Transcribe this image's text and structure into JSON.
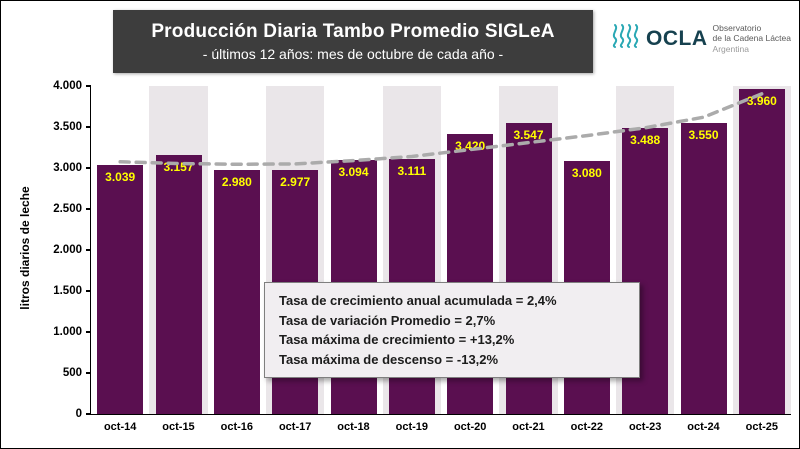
{
  "header": {
    "title": "Producción Diaria Tambo Promedio SIGLeA",
    "subtitle": "- últimos 12 años: mes de octubre de cada año -"
  },
  "logo": {
    "name": "OCLA",
    "line1": "Observatorio",
    "line2": "de la Cadena Láctea",
    "line3": "Argentina"
  },
  "chart_data": {
    "type": "bar",
    "title": "Producción Diaria Tambo Promedio SIGLeA",
    "subtitle": "- últimos 12 años: mes de octubre de cada año -",
    "ylabel": "litros diarios de leche",
    "xlabel": "",
    "categories": [
      "oct-14",
      "oct-15",
      "oct-16",
      "oct-17",
      "oct-18",
      "oct-19",
      "oct-20",
      "oct-21",
      "oct-22",
      "oct-23",
      "oct-24",
      "oct-25"
    ],
    "values": [
      3039,
      3157,
      2980,
      2977,
      3094,
      3111,
      3420,
      3547,
      3080,
      3488,
      3550,
      3960
    ],
    "value_labels": [
      "3.039",
      "3.157",
      "2.980",
      "2.977",
      "3.094",
      "3.111",
      "3.420",
      "3.547",
      "3.080",
      "3.488",
      "3.550",
      "3.960"
    ],
    "ylim": [
      0,
      4000
    ],
    "yticks_values": [
      0,
      500,
      1000,
      1500,
      2000,
      2500,
      3000,
      3500,
      4000
    ],
    "yticks_labels": [
      "0",
      "500",
      "1.000",
      "1.500",
      "2.000",
      "2.500",
      "3.000",
      "3.500",
      "4.000"
    ],
    "trend_values": [
      3075,
      3055,
      3045,
      3050,
      3090,
      3140,
      3225,
      3310,
      3395,
      3490,
      3620,
      3905
    ],
    "bar_color": "#5a0f50",
    "label_color": "#ffff00",
    "trend_color": "#ababab",
    "grid": false,
    "legend_position": "none"
  },
  "stats_box": {
    "lines": [
      "Tasa de crecimiento anual acumulada = 2,4%",
      "Tasa de variación Promedio = 2,7%",
      "Tasa máxima de crecimiento = +13,2%",
      "Tasa máxima de descenso = -13,2%"
    ]
  }
}
